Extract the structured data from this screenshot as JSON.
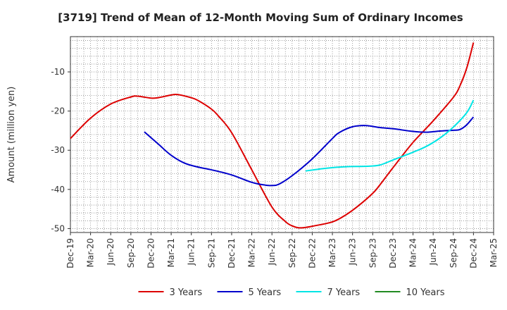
{
  "chart_data": {
    "type": "line",
    "title": "[3719]  Trend of Mean of 12-Month Moving Sum of Ordinary Incomes",
    "xlabel": "",
    "ylabel": "Amount (million yen)",
    "ylim": [
      -51,
      -1
    ],
    "yticks": [
      -50,
      -40,
      -30,
      -20,
      -10
    ],
    "ytick_labels": [
      "-50",
      "-40",
      "-30",
      "-20",
      "-10"
    ],
    "x_range": [
      "2019-12",
      "2025-03"
    ],
    "xticks": [
      "Dec-19",
      "Mar-20",
      "Jun-20",
      "Sep-20",
      "Dec-20",
      "Mar-21",
      "Jun-21",
      "Sep-21",
      "Dec-21",
      "Mar-22",
      "Jun-22",
      "Sep-22",
      "Dec-22",
      "Mar-23",
      "Jun-23",
      "Sep-23",
      "Dec-23",
      "Mar-24",
      "Jun-24",
      "Sep-24",
      "Dec-24",
      "Mar-25"
    ],
    "grid": true,
    "legend_position": "bottom",
    "series": [
      {
        "name": "3 Years",
        "color": "#dd0000",
        "x": [
          "2019-12",
          "2020-03",
          "2020-06",
          "2020-09",
          "2020-10",
          "2020-12",
          "2021-01",
          "2021-03",
          "2021-04",
          "2021-06",
          "2021-07",
          "2021-09",
          "2021-10",
          "2021-12",
          "2022-03",
          "2022-06",
          "2022-08",
          "2022-09",
          "2022-10",
          "2022-11",
          "2022-12",
          "2023-03",
          "2023-05",
          "2023-07",
          "2023-09",
          "2023-10",
          "2023-12",
          "2024-03",
          "2024-06",
          "2024-09",
          "2024-10",
          "2024-11",
          "2024-12"
        ],
        "values": [
          -27.0,
          -21.8,
          -18.2,
          -16.4,
          -16.2,
          -16.7,
          -16.6,
          -15.9,
          -15.8,
          -16.6,
          -17.3,
          -19.5,
          -21.2,
          -25.5,
          -35.0,
          -44.5,
          -48.2,
          -49.3,
          -49.8,
          -49.7,
          -49.4,
          -48.3,
          -46.5,
          -44.0,
          -41.0,
          -39.0,
          -34.5,
          -28.0,
          -22.5,
          -16.5,
          -13.5,
          -9.0,
          -2.5
        ]
      },
      {
        "name": "5 Years",
        "color": "#0000cc",
        "x": [
          "2020-11",
          "2021-01",
          "2021-03",
          "2021-05",
          "2021-07",
          "2021-09",
          "2021-12",
          "2022-03",
          "2022-05",
          "2022-06",
          "2022-07",
          "2022-09",
          "2022-12",
          "2023-03",
          "2023-04",
          "2023-06",
          "2023-08",
          "2023-10",
          "2023-12",
          "2024-03",
          "2024-05",
          "2024-07",
          "2024-09",
          "2024-10",
          "2024-11",
          "2024-12"
        ],
        "values": [
          -25.3,
          -28.3,
          -31.3,
          -33.3,
          -34.3,
          -35.0,
          -36.3,
          -38.2,
          -38.9,
          -39.0,
          -38.7,
          -36.5,
          -32.2,
          -27.0,
          -25.5,
          -24.0,
          -23.7,
          -24.2,
          -24.5,
          -25.2,
          -25.4,
          -25.1,
          -24.9,
          -24.7,
          -23.5,
          -21.5
        ]
      },
      {
        "name": "7 Years",
        "color": "#00e5e5",
        "x": [
          "2022-11",
          "2023-02",
          "2023-05",
          "2023-08",
          "2023-10",
          "2023-12",
          "2024-03",
          "2024-05",
          "2024-07",
          "2024-09",
          "2024-11",
          "2024-12"
        ],
        "values": [
          -35.3,
          -34.6,
          -34.2,
          -34.1,
          -33.8,
          -32.5,
          -30.5,
          -29.0,
          -26.9,
          -24.1,
          -20.4,
          -17.2
        ]
      },
      {
        "name": "10 Years",
        "color": "#228b22",
        "x": [],
        "values": []
      }
    ]
  }
}
